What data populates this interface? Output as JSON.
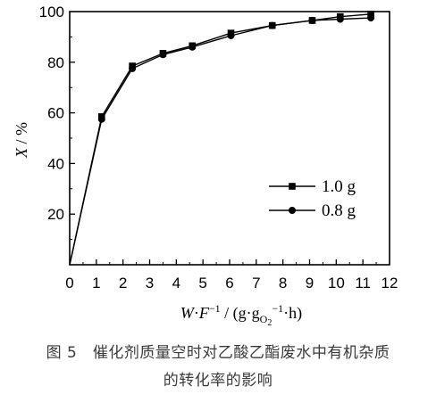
{
  "chart_data": {
    "type": "line",
    "xlabel_parts": {
      "w": "W",
      "dot": "·",
      "f": "F",
      "sup1": "−1",
      "rest1": " / (g·g",
      "sub": "O",
      "sub2": "2",
      "sup2": "−1",
      "rest2": "·h)"
    },
    "ylabel_parts": {
      "x": "X",
      "rest": " / %"
    },
    "xlim": [
      0,
      12
    ],
    "ylim": [
      0,
      100
    ],
    "xticks": [
      "0",
      "1",
      "2",
      "3",
      "4",
      "5",
      "6",
      "7",
      "8",
      "9",
      "10",
      "11",
      "12"
    ],
    "yticks": [
      "20",
      "40",
      "60",
      "80",
      "100"
    ],
    "grid": false,
    "legend_position": "center-right",
    "series": [
      {
        "name": "1.0 g",
        "marker": "square",
        "x": [
          0,
          1.2,
          2.35,
          3.5,
          4.6,
          6.05,
          7.6,
          9.1,
          10.15,
          11.3
        ],
        "y": [
          0,
          58.5,
          78.5,
          83.5,
          86.5,
          91.5,
          94.5,
          96.5,
          98,
          99
        ]
      },
      {
        "name": "0.8 g",
        "marker": "circle",
        "x": [
          0,
          1.2,
          2.35,
          3.5,
          4.6,
          6.05,
          7.6,
          9.1,
          10.15,
          11.3
        ],
        "y": [
          0,
          57.5,
          77.5,
          83,
          86,
          90.5,
          94.5,
          96.5,
          97,
          97.5
        ]
      }
    ]
  },
  "caption": {
    "line1": "图 5　催化剂质量空时对乙酸乙酯废水中有机杂质",
    "line2": "的转化率的影响"
  }
}
